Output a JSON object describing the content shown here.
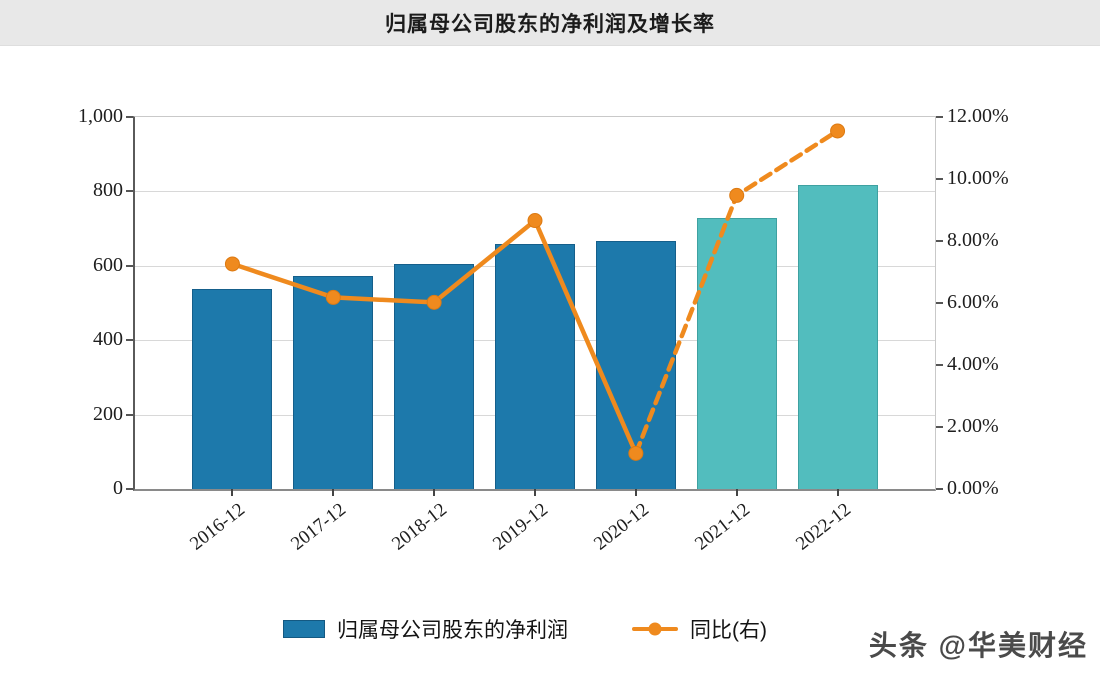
{
  "header": {
    "title": "归属母公司股东的净利润及增长率"
  },
  "chart_data": {
    "type": "bar",
    "title": "归属母公司股东的净利润及增长率",
    "categories": [
      "2016-12",
      "2017-12",
      "2018-12",
      "2019-12",
      "2020-12",
      "2021-12",
      "2022-12"
    ],
    "series": [
      {
        "name": "归属母公司股东的净利润",
        "type": "bar",
        "axis": "left",
        "values": [
          538,
          572,
          606,
          659,
          666,
          729,
          817
        ],
        "forecast_from_index": 5
      },
      {
        "name": "同比(右)",
        "type": "line",
        "axis": "right",
        "values": [
          7.26,
          6.18,
          6.02,
          8.66,
          1.15,
          9.47,
          11.55
        ],
        "dashed_from_index": 4
      }
    ],
    "left_axis": {
      "min": 0,
      "max": 1000,
      "step": 200,
      "tick_labels": [
        "0",
        "200",
        "400",
        "600",
        "800",
        "1,000"
      ]
    },
    "right_axis": {
      "min": 0,
      "max": 12,
      "step": 2,
      "tick_labels": [
        "0.00%",
        "2.00%",
        "4.00%",
        "6.00%",
        "8.00%",
        "10.00%",
        "12.00%"
      ]
    },
    "grid": true,
    "legend_position": "bottom",
    "colors": {
      "bar_actual": "#1d79ab",
      "bar_forecast": "#52bdbe",
      "line": "#ef8a1e",
      "line_stroke_edge": "#dd7a12"
    }
  },
  "legend": {
    "items": [
      {
        "label": "归属母公司股东的净利润",
        "marker": "bar-swatch"
      },
      {
        "label": "同比(右)",
        "marker": "line-dot"
      }
    ]
  },
  "watermark": {
    "text": "头条 @华美财经"
  }
}
